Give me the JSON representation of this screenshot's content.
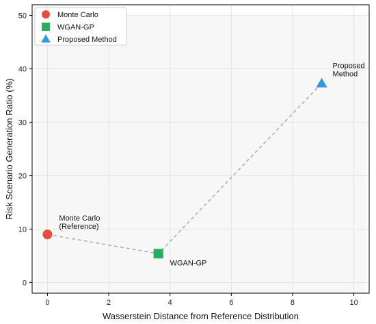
{
  "chart_data": {
    "type": "scatter",
    "title": "",
    "xlabel": "Wasserstein Distance from Reference Distribution",
    "ylabel": "Risk Scenario Generation Ratio (%)",
    "xlim": [
      -0.5,
      10.5
    ],
    "ylim": [
      -2,
      52
    ],
    "xticks": [
      0,
      2,
      4,
      6,
      8,
      10
    ],
    "yticks": [
      0,
      10,
      20,
      30,
      40,
      50
    ],
    "grid": true,
    "legend_position": "top-left",
    "connector": {
      "style": "dashed",
      "color": "#aaaaaa"
    },
    "series": [
      {
        "name": "Monte Carlo",
        "marker": "circle",
        "color": "#e74c3c",
        "x": 0.0,
        "y": 9.0
      },
      {
        "name": "WGAN-GP",
        "marker": "square",
        "color": "#27ae60",
        "x": 3.62,
        "y": 5.4
      },
      {
        "name": "Proposed Method",
        "marker": "triangle",
        "color": "#3498db",
        "x": 8.95,
        "y": 37.3
      }
    ],
    "annotations": [
      {
        "lines": [
          "Monte Carlo",
          "(Reference)"
        ],
        "x": 0.0,
        "y": 9.0
      },
      {
        "lines": [
          "WGAN-GP"
        ],
        "x": 3.62,
        "y": 5.4
      },
      {
        "lines": [
          "Proposed",
          "Method"
        ],
        "x": 8.95,
        "y": 37.3
      }
    ]
  }
}
